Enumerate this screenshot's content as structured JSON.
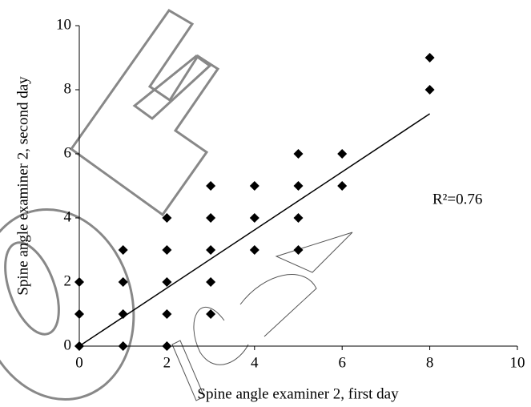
{
  "chart_data": {
    "type": "scatter",
    "x_label": "Spine angle examiner 2, first day",
    "y_label": "Spine angle examiner 2, second day",
    "annotation": "R²=0.76",
    "x": [
      0,
      0,
      0,
      1,
      1,
      1,
      1,
      2,
      2,
      2,
      2,
      2,
      3,
      3,
      3,
      3,
      3,
      4,
      4,
      4,
      5,
      5,
      5,
      5,
      6,
      6,
      8,
      8
    ],
    "values": [
      0,
      1,
      2,
      0,
      1,
      2,
      3,
      0,
      1,
      2,
      3,
      4,
      1,
      2,
      3,
      4,
      5,
      3,
      4,
      5,
      3,
      4,
      5,
      6,
      5,
      6,
      8,
      9
    ],
    "color": "#000000",
    "trendline": {
      "x": [
        0,
        8
      ],
      "y": [
        0,
        7.25
      ]
    },
    "xlim": [
      0,
      10
    ],
    "ylim": [
      0,
      10
    ],
    "xticks": [
      0,
      2,
      4,
      6,
      8,
      10
    ],
    "yticks": [
      0,
      2,
      4,
      6,
      8,
      10
    ]
  }
}
